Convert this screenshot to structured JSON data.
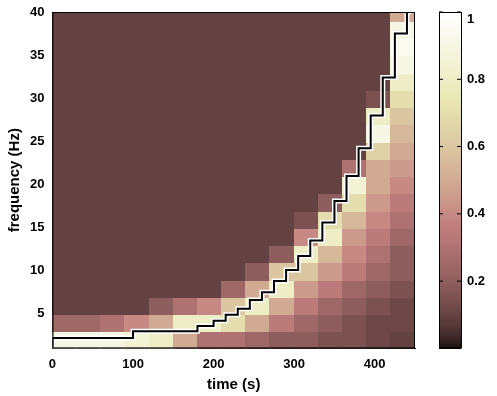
{
  "chart_data": {
    "type": "heatmap",
    "xlabel": "time (s)",
    "ylabel": "frequency (Hz)",
    "xlim": [
      0,
      450
    ],
    "ylim": [
      1,
      40
    ],
    "xticks": [
      0,
      100,
      200,
      300,
      400
    ],
    "yticks": [
      5,
      10,
      15,
      20,
      25,
      30,
      35,
      40
    ],
    "grid": false,
    "color": "pink",
    "x_edges": [
      0,
      30,
      60,
      90,
      120,
      150,
      180,
      210,
      240,
      270,
      300,
      330,
      360,
      390,
      420,
      450
    ],
    "y_edges": [
      1,
      3,
      5,
      7,
      9,
      11,
      13,
      15,
      17,
      19,
      21,
      23,
      25,
      27,
      29,
      31,
      33,
      35,
      37,
      39,
      41
    ],
    "cells": [
      [
        0.9,
        0.25,
        0.1,
        0.1,
        0.1,
        0.1,
        0.1,
        0.1,
        0.1,
        0.1,
        0.1,
        0.1,
        0.1,
        0.1,
        0.1,
        0.1,
        0.1,
        0.1,
        0.1,
        0.1
      ],
      [
        0.9,
        0.25,
        0.1,
        0.1,
        0.1,
        0.1,
        0.1,
        0.1,
        0.1,
        0.1,
        0.1,
        0.1,
        0.1,
        0.1,
        0.1,
        0.1,
        0.1,
        0.1,
        0.1,
        0.1
      ],
      [
        0.9,
        0.3,
        0.1,
        0.1,
        0.1,
        0.1,
        0.1,
        0.1,
        0.1,
        0.1,
        0.1,
        0.1,
        0.1,
        0.1,
        0.1,
        0.1,
        0.1,
        0.1,
        0.1,
        0.1
      ],
      [
        0.85,
        0.4,
        0.1,
        0.1,
        0.1,
        0.1,
        0.1,
        0.1,
        0.1,
        0.1,
        0.1,
        0.1,
        0.1,
        0.1,
        0.1,
        0.1,
        0.1,
        0.1,
        0.1,
        0.1
      ],
      [
        0.8,
        0.5,
        0.2,
        0.1,
        0.1,
        0.1,
        0.1,
        0.1,
        0.1,
        0.1,
        0.1,
        0.1,
        0.1,
        0.1,
        0.1,
        0.1,
        0.1,
        0.1,
        0.1,
        0.1
      ],
      [
        0.5,
        0.8,
        0.3,
        0.1,
        0.1,
        0.1,
        0.1,
        0.1,
        0.1,
        0.1,
        0.1,
        0.1,
        0.1,
        0.1,
        0.1,
        0.1,
        0.1,
        0.1,
        0.1,
        0.1
      ],
      [
        0.3,
        0.8,
        0.4,
        0.1,
        0.1,
        0.1,
        0.1,
        0.1,
        0.1,
        0.1,
        0.1,
        0.1,
        0.1,
        0.1,
        0.1,
        0.1,
        0.1,
        0.1,
        0.1,
        0.1
      ],
      [
        0.3,
        0.7,
        0.6,
        0.25,
        0.1,
        0.1,
        0.1,
        0.1,
        0.1,
        0.1,
        0.1,
        0.1,
        0.1,
        0.1,
        0.1,
        0.1,
        0.1,
        0.1,
        0.1,
        0.1
      ],
      [
        0.25,
        0.5,
        0.8,
        0.5,
        0.2,
        0.1,
        0.1,
        0.1,
        0.1,
        0.1,
        0.1,
        0.1,
        0.1,
        0.1,
        0.1,
        0.1,
        0.1,
        0.1,
        0.1,
        0.1
      ],
      [
        0.2,
        0.35,
        0.5,
        0.8,
        0.6,
        0.2,
        0.1,
        0.1,
        0.1,
        0.1,
        0.1,
        0.1,
        0.1,
        0.1,
        0.1,
        0.1,
        0.1,
        0.1,
        0.1,
        0.1
      ],
      [
        0.2,
        0.25,
        0.35,
        0.45,
        0.6,
        0.8,
        0.4,
        0.15,
        0.1,
        0.1,
        0.1,
        0.1,
        0.1,
        0.1,
        0.1,
        0.1,
        0.1,
        0.1,
        0.1,
        0.1
      ],
      [
        0.15,
        0.2,
        0.25,
        0.35,
        0.45,
        0.55,
        0.8,
        0.7,
        0.2,
        0.1,
        0.1,
        0.1,
        0.1,
        0.1,
        0.1,
        0.1,
        0.1,
        0.1,
        0.1,
        0.1
      ],
      [
        0.15,
        0.15,
        0.2,
        0.25,
        0.35,
        0.4,
        0.45,
        0.55,
        0.7,
        0.85,
        0.3,
        0.1,
        0.1,
        0.1,
        0.1,
        0.1,
        0.1,
        0.1,
        0.1,
        0.1
      ],
      [
        0.12,
        0.12,
        0.15,
        0.2,
        0.25,
        0.3,
        0.35,
        0.4,
        0.45,
        0.5,
        0.5,
        0.65,
        0.9,
        0.8,
        0.15,
        0.1,
        0.1,
        0.1,
        0.1,
        0.1
      ],
      [
        0.1,
        0.12,
        0.12,
        0.15,
        0.2,
        0.2,
        0.25,
        0.3,
        0.35,
        0.4,
        0.45,
        0.5,
        0.55,
        0.6,
        0.7,
        0.8,
        0.9,
        0.95,
        0.9,
        0.5
      ]
    ],
    "colorbar": {
      "lim": [
        0,
        1
      ],
      "ticks": [
        0.2,
        0.4,
        0.6,
        0.8,
        1
      ]
    },
    "series": [
      {
        "type": "line",
        "color": "#000000",
        "line_style": "solid",
        "x": [
          0,
          100,
          150,
          180,
          200,
          215,
          230,
          245,
          260,
          275,
          290,
          305,
          320,
          335,
          350,
          365,
          380,
          395,
          410,
          425,
          440,
          445
        ],
        "values": [
          1.2,
          2.2,
          3.0,
          3.0,
          3.6,
          4.2,
          4.9,
          5.6,
          6.6,
          7.5,
          8.8,
          10.1,
          11.7,
          13.5,
          15.6,
          18.1,
          21,
          24.2,
          28,
          32.4,
          37.5,
          40
        ]
      }
    ]
  }
}
